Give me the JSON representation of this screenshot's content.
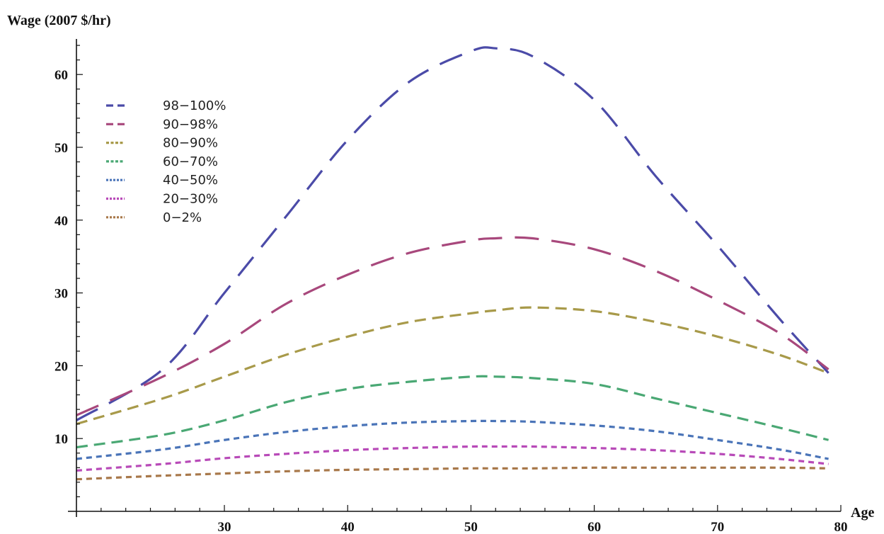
{
  "chart_data": {
    "type": "line",
    "ylabel": "Wage (2007 $/hr)",
    "xlabel": "Age",
    "xlim": [
      18,
      80
    ],
    "ylim": [
      0,
      65
    ],
    "x_ticks": [
      30,
      40,
      50,
      60,
      70,
      80
    ],
    "x_minor_ticks": [
      20,
      22,
      24,
      26,
      28,
      32,
      34,
      36,
      38,
      42,
      44,
      46,
      48,
      52,
      54,
      56,
      58,
      62,
      64,
      66,
      68,
      72,
      74,
      76,
      78
    ],
    "y_ticks": [
      10,
      20,
      30,
      40,
      50,
      60
    ],
    "y_minor_ticks": [
      2,
      4,
      6,
      8,
      12,
      14,
      16,
      18,
      22,
      24,
      26,
      28,
      32,
      34,
      36,
      38,
      42,
      44,
      46,
      48,
      52,
      54,
      56,
      58,
      62,
      64
    ],
    "legend_position": "top-left",
    "x": [
      18,
      25,
      30,
      35,
      40,
      45,
      50,
      52,
      55,
      60,
      65,
      70,
      75,
      79
    ],
    "series": [
      {
        "name": "98−100%",
        "color": "#4b4ba8",
        "dash": "long",
        "values": [
          12.5,
          19.5,
          30.0,
          40.5,
          51.0,
          59.0,
          63.2,
          63.6,
          62.5,
          56.5,
          46.0,
          36.5,
          26.5,
          19.0
        ]
      },
      {
        "name": "90−98%",
        "color": "#a8487c",
        "dash": "long",
        "values": [
          13.2,
          18.5,
          23.0,
          28.5,
          32.5,
          35.5,
          37.2,
          37.5,
          37.5,
          36.0,
          33.0,
          29.0,
          24.5,
          19.5
        ]
      },
      {
        "name": "80−90%",
        "color": "#a89a4a",
        "dash": "medium",
        "values": [
          12.0,
          15.5,
          18.5,
          21.5,
          24.0,
          26.0,
          27.2,
          27.6,
          28.0,
          27.5,
          26.0,
          24.0,
          21.5,
          19.0
        ]
      },
      {
        "name": "60−70%",
        "color": "#4aa874",
        "dash": "medium",
        "values": [
          8.8,
          10.5,
          12.5,
          15.0,
          16.8,
          17.8,
          18.5,
          18.5,
          18.3,
          17.5,
          15.5,
          13.5,
          11.5,
          9.8
        ]
      },
      {
        "name": "40−50%",
        "color": "#4a74b8",
        "dash": "short",
        "values": [
          7.2,
          8.5,
          9.8,
          10.9,
          11.7,
          12.2,
          12.4,
          12.4,
          12.3,
          11.8,
          11.0,
          9.8,
          8.5,
          7.2
        ]
      },
      {
        "name": "20−30%",
        "color": "#b84ab8",
        "dash": "short",
        "values": [
          5.6,
          6.5,
          7.3,
          7.9,
          8.4,
          8.7,
          8.9,
          8.9,
          8.9,
          8.7,
          8.4,
          7.9,
          7.2,
          6.5
        ]
      },
      {
        "name": "0−2%",
        "color": "#a8784a",
        "dash": "short",
        "values": [
          4.4,
          4.9,
          5.2,
          5.5,
          5.7,
          5.8,
          5.9,
          5.9,
          5.9,
          6.0,
          6.0,
          6.0,
          6.0,
          5.9
        ]
      }
    ]
  }
}
